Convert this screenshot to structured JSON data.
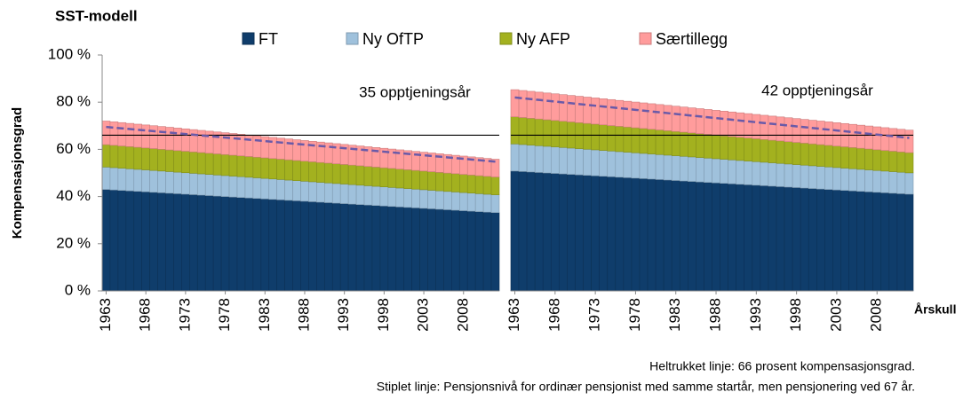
{
  "chart_data": [
    {
      "type": "bar",
      "stacked": true,
      "title": "SST-modell",
      "ylabel": "Kompensasjonsgrad",
      "annotation": "35 opptjeningsår",
      "categories": [
        "1963",
        null,
        null,
        null,
        null,
        "1968",
        null,
        null,
        null,
        null,
        "1973",
        null,
        null,
        null,
        null,
        "1978",
        null,
        null,
        null,
        null,
        "1983",
        null,
        null,
        null,
        null,
        "1988",
        null,
        null,
        null,
        null,
        "1993",
        null,
        null,
        null,
        null,
        "1998",
        null,
        null,
        null,
        null,
        "2003",
        null,
        null,
        null,
        null,
        "2008",
        null,
        null,
        null,
        null
      ],
      "ylim": [
        0,
        100
      ],
      "yticks": [
        {
          "value": 0,
          "label": "0 %"
        },
        {
          "value": 20,
          "label": "20 %"
        },
        {
          "value": 40,
          "label": "40 %"
        },
        {
          "value": 60,
          "label": "60 %"
        },
        {
          "value": 80,
          "label": "80 %"
        },
        {
          "value": 100,
          "label": "100 %"
        }
      ],
      "reference_line": 66,
      "series": [
        {
          "name": "FT",
          "color": "#0f3d6b",
          "values": [
            43.0,
            42.8,
            42.6,
            42.4,
            42.2,
            42.0,
            41.8,
            41.6,
            41.4,
            41.2,
            41.0,
            40.8,
            40.6,
            40.4,
            40.2,
            40.0,
            39.8,
            39.6,
            39.4,
            39.2,
            39.0,
            38.8,
            38.6,
            38.4,
            38.2,
            38.0,
            37.8,
            37.6,
            37.4,
            37.2,
            37.0,
            36.8,
            36.6,
            36.4,
            36.2,
            36.0,
            35.8,
            35.6,
            35.4,
            35.2,
            35.0,
            34.8,
            34.6,
            34.4,
            34.2,
            34.0,
            33.8,
            33.6,
            33.4,
            33.2
          ]
        },
        {
          "name": "Ny OfTP",
          "color": "#9fc1dc",
          "values": [
            9.5,
            9.46,
            9.42,
            9.38,
            9.34,
            9.3,
            9.26,
            9.22,
            9.18,
            9.14,
            9.1,
            9.06,
            9.02,
            8.98,
            8.94,
            8.9,
            8.86,
            8.82,
            8.78,
            8.74,
            8.7,
            8.66,
            8.62,
            8.58,
            8.54,
            8.5,
            8.46,
            8.42,
            8.38,
            8.34,
            8.3,
            8.26,
            8.22,
            8.18,
            8.14,
            8.1,
            8.06,
            8.02,
            7.98,
            7.94,
            7.9,
            7.86,
            7.82,
            7.78,
            7.74,
            7.7,
            7.66,
            7.62,
            7.58,
            7.54
          ]
        },
        {
          "name": "Ny AFP",
          "color": "#a3b11f",
          "values": [
            9.5,
            9.46,
            9.42,
            9.38,
            9.34,
            9.3,
            9.26,
            9.22,
            9.18,
            9.14,
            9.1,
            9.06,
            9.02,
            8.98,
            8.94,
            8.9,
            8.86,
            8.82,
            8.78,
            8.74,
            8.7,
            8.66,
            8.62,
            8.58,
            8.54,
            8.5,
            8.46,
            8.42,
            8.38,
            8.34,
            8.3,
            8.26,
            8.22,
            8.18,
            8.14,
            8.1,
            8.06,
            8.02,
            7.98,
            7.94,
            7.9,
            7.86,
            7.82,
            7.78,
            7.74,
            7.7,
            7.66,
            7.62,
            7.58,
            7.54
          ]
        },
        {
          "name": "Særtillegg",
          "color": "#ff9c9c",
          "values": [
            10.0,
            9.95,
            9.9,
            9.85,
            9.8,
            9.75,
            9.7,
            9.65,
            9.6,
            9.55,
            9.5,
            9.45,
            9.4,
            9.35,
            9.3,
            9.25,
            9.2,
            9.15,
            9.1,
            9.05,
            9.0,
            8.95,
            8.9,
            8.85,
            8.8,
            8.75,
            8.7,
            8.65,
            8.6,
            8.55,
            8.5,
            8.45,
            8.4,
            8.35,
            8.3,
            8.25,
            8.2,
            8.15,
            8.1,
            8.05,
            8.0,
            7.95,
            7.9,
            7.85,
            7.8,
            7.75,
            7.7,
            7.65,
            7.6,
            7.55
          ]
        }
      ],
      "dashed_line": {
        "color": "#6a5aa8",
        "values": [
          69.5,
          69.2,
          68.9,
          68.6,
          68.3,
          68.0,
          67.7,
          67.4,
          67.1,
          66.8,
          66.5,
          66.2,
          65.9,
          65.6,
          65.3,
          65.0,
          64.7,
          64.4,
          64.1,
          63.8,
          63.5,
          63.2,
          62.9,
          62.6,
          62.3,
          62.0,
          61.7,
          61.4,
          61.1,
          60.8,
          60.5,
          60.2,
          59.9,
          59.6,
          59.3,
          59.0,
          58.7,
          58.4,
          58.1,
          57.8,
          57.5,
          57.2,
          56.9,
          56.6,
          56.3,
          56.0,
          55.7,
          55.4,
          55.1,
          54.8
        ]
      }
    },
    {
      "type": "bar",
      "stacked": true,
      "xlabel": "Årskull",
      "annotation": "42 opptjeningsår",
      "categories": [
        "1963",
        null,
        null,
        null,
        null,
        "1968",
        null,
        null,
        null,
        null,
        "1973",
        null,
        null,
        null,
        null,
        "1978",
        null,
        null,
        null,
        null,
        "1983",
        null,
        null,
        null,
        null,
        "1988",
        null,
        null,
        null,
        null,
        "1993",
        null,
        null,
        null,
        null,
        "1998",
        null,
        null,
        null,
        null,
        "2003",
        null,
        null,
        null,
        null,
        "2008",
        null,
        null,
        null,
        null
      ],
      "ylim": [
        0,
        100
      ],
      "reference_line": 66,
      "series": [
        {
          "color": "#0f3d6b",
          "values": [
            50.8,
            50.6,
            50.4,
            50.2,
            50.0,
            49.8,
            49.6,
            49.4,
            49.2,
            49.0,
            48.8,
            48.6,
            48.4,
            48.2,
            48.0,
            47.8,
            47.6,
            47.4,
            47.2,
            47.0,
            46.8,
            46.6,
            46.4,
            46.2,
            46.0,
            45.8,
            45.6,
            45.4,
            45.2,
            45.0,
            44.8,
            44.6,
            44.4,
            44.2,
            44.0,
            43.8,
            43.6,
            43.4,
            43.2,
            43.0,
            42.8,
            42.6,
            42.4,
            42.2,
            42.0,
            41.8,
            41.6,
            41.4,
            41.2,
            41.0
          ]
        },
        {
          "color": "#9fc1dc",
          "values": [
            11.5,
            11.45,
            11.4,
            11.35,
            11.3,
            11.25,
            11.2,
            11.15,
            11.1,
            11.05,
            11.0,
            10.95,
            10.9,
            10.85,
            10.8,
            10.75,
            10.7,
            10.65,
            10.6,
            10.55,
            10.5,
            10.45,
            10.4,
            10.35,
            10.3,
            10.25,
            10.2,
            10.15,
            10.1,
            10.05,
            10.0,
            9.95,
            9.9,
            9.85,
            9.8,
            9.75,
            9.7,
            9.65,
            9.6,
            9.55,
            9.5,
            9.45,
            9.4,
            9.35,
            9.3,
            9.25,
            9.2,
            9.15,
            9.1,
            9.05
          ]
        },
        {
          "color": "#a3b11f",
          "values": [
            11.5,
            11.44,
            11.38,
            11.32,
            11.26,
            11.2,
            11.14,
            11.08,
            11.02,
            10.96,
            10.9,
            10.84,
            10.78,
            10.72,
            10.66,
            10.6,
            10.54,
            10.48,
            10.42,
            10.36,
            10.3,
            10.24,
            10.18,
            10.12,
            10.06,
            10.0,
            9.94,
            9.88,
            9.82,
            9.76,
            9.7,
            9.64,
            9.58,
            9.52,
            9.46,
            9.4,
            9.34,
            9.28,
            9.22,
            9.16,
            9.1,
            9.04,
            8.98,
            8.92,
            8.86,
            8.8,
            8.74,
            8.68,
            8.62,
            8.56
          ]
        },
        {
          "color": "#ff9c9c",
          "values": [
            11.5,
            11.46,
            11.42,
            11.38,
            11.34,
            11.3,
            11.26,
            11.22,
            11.18,
            11.14,
            11.1,
            11.06,
            11.02,
            10.98,
            10.94,
            10.9,
            10.86,
            10.82,
            10.78,
            10.74,
            10.7,
            10.66,
            10.62,
            10.58,
            10.54,
            10.5,
            10.46,
            10.42,
            10.38,
            10.34,
            10.3,
            10.26,
            10.22,
            10.18,
            10.14,
            10.1,
            10.06,
            10.02,
            9.98,
            9.94,
            9.9,
            9.86,
            9.82,
            9.78,
            9.74,
            9.7,
            9.66,
            9.62,
            9.58,
            9.54
          ]
        }
      ],
      "dashed_line": {
        "color": "#6a5aa8",
        "values": [
          82.0,
          81.65,
          81.3,
          80.95,
          80.6,
          80.25,
          79.9,
          79.55,
          79.2,
          78.85,
          78.5,
          78.15,
          77.8,
          77.45,
          77.1,
          76.75,
          76.4,
          76.05,
          75.7,
          75.35,
          75.0,
          74.65,
          74.3,
          73.95,
          73.6,
          73.25,
          72.9,
          72.55,
          72.2,
          71.85,
          71.5,
          71.15,
          70.8,
          70.45,
          70.1,
          69.75,
          69.4,
          69.05,
          68.7,
          68.35,
          68.0,
          67.65,
          67.3,
          66.95,
          66.6,
          66.25,
          65.9,
          65.55,
          65.2,
          64.85
        ]
      }
    }
  ],
  "notes": [
    "Heltrukket linje: 66 prosent kompensasjonsgrad.",
    "Stiplet linje: Pensjonsnivå for ordinær pensjonist med samme startår, men pensjonering ved 67 år."
  ]
}
